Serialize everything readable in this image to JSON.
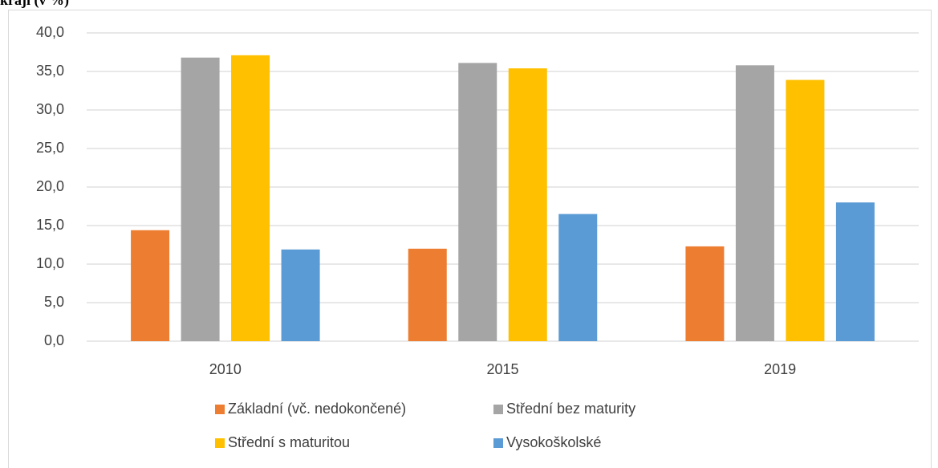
{
  "chart_data": {
    "type": "bar",
    "title": "kraji (v %)",
    "categories": [
      "2010",
      "2015",
      "2019"
    ],
    "series": [
      {
        "name": "Základní (vč. nedokončené)",
        "color": "#ed7d31",
        "values": [
          14.4,
          12.0,
          12.3
        ]
      },
      {
        "name": "Střední bez maturity",
        "color": "#a5a5a5",
        "values": [
          36.8,
          36.1,
          35.8
        ]
      },
      {
        "name": "Střední s maturitou",
        "color": "#ffc000",
        "values": [
          37.1,
          35.4,
          33.9
        ]
      },
      {
        "name": "Vysokoškolské",
        "color": "#5b9bd5",
        "values": [
          11.9,
          16.5,
          18.0
        ]
      }
    ],
    "ylim": [
      0,
      40
    ],
    "yticks": [
      {
        "value": 0,
        "label": "0,0"
      },
      {
        "value": 5,
        "label": "5,0"
      },
      {
        "value": 10,
        "label": "10,0"
      },
      {
        "value": 15,
        "label": "15,0"
      },
      {
        "value": 20,
        "label": "20,0"
      },
      {
        "value": 25,
        "label": "25,0"
      },
      {
        "value": 30,
        "label": "30,0"
      },
      {
        "value": 35,
        "label": "35,0"
      },
      {
        "value": 40,
        "label": "40,0"
      }
    ],
    "grid": true,
    "legend": "bottom"
  }
}
